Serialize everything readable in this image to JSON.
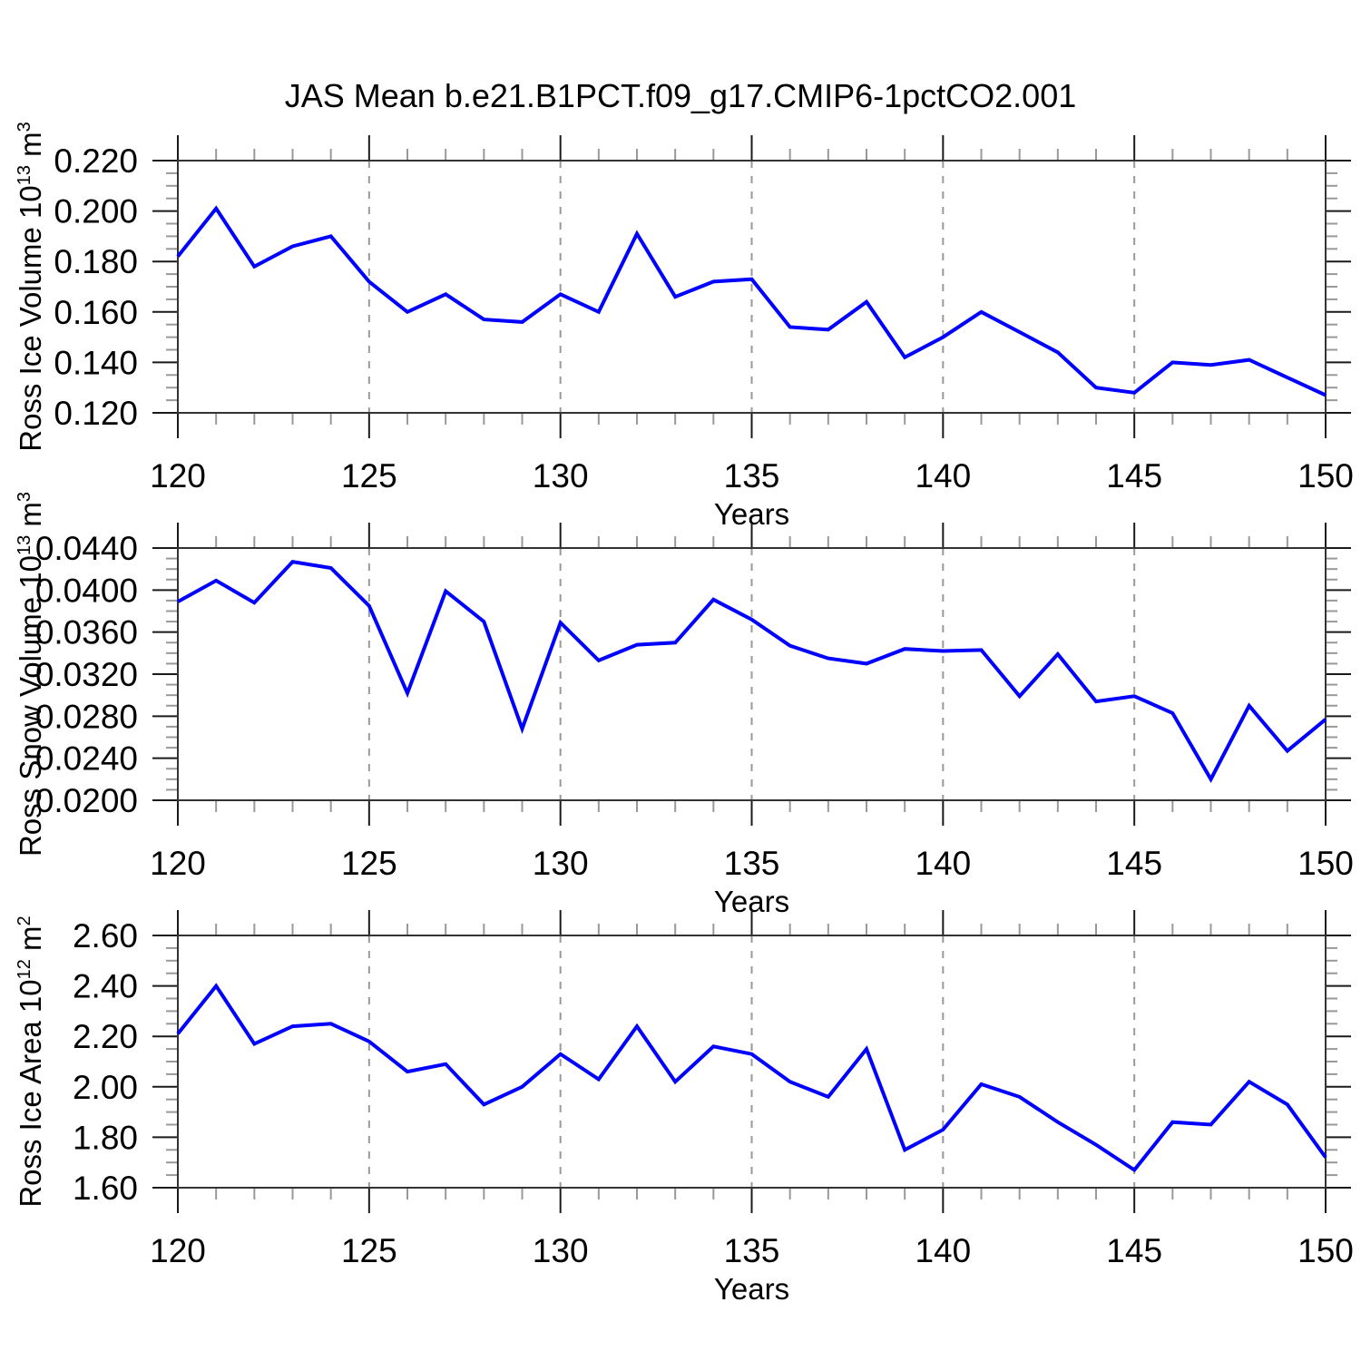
{
  "title": "JAS Mean b.e21.B1PCT.f09_g17.CMIP6-1pctCO2.001",
  "colors": {
    "line": "#0000ff",
    "grid": "#999999",
    "axis": "#333333",
    "tick_major": "#1a1a1a",
    "tick_minor": "#999999",
    "text": "#000000",
    "background": "#ffffff"
  },
  "x_range": [
    120,
    150
  ],
  "years": [
    120,
    121,
    122,
    123,
    124,
    125,
    126,
    127,
    128,
    129,
    130,
    131,
    132,
    133,
    134,
    135,
    136,
    137,
    138,
    139,
    140,
    141,
    142,
    143,
    144,
    145,
    146,
    147,
    148,
    149,
    150
  ],
  "x_major_ticks": [
    120,
    125,
    130,
    135,
    140,
    145,
    150
  ],
  "x_tick_labels": [
    "120",
    "125",
    "130",
    "135",
    "140",
    "145",
    "150"
  ],
  "grid_x": [
    125,
    130,
    135,
    140,
    145
  ],
  "chart_data": [
    {
      "type": "line",
      "id": "ross-ice-volume",
      "ylabel": "Ross Ice Volume 10^13 m^3",
      "xlabel": "Years",
      "ylabel_segments": [
        {
          "text": "Ross Ice Volume 10",
          "sup": false
        },
        {
          "text": "13",
          "sup": true
        },
        {
          "text": " m",
          "sup": false
        },
        {
          "text": "3",
          "sup": true
        }
      ],
      "ylim": [
        0.12,
        0.22
      ],
      "y_minor_step": 0.005,
      "yticks": [
        {
          "value": 0.22,
          "label": "0.220"
        },
        {
          "value": 0.2,
          "label": "0.200"
        },
        {
          "value": 0.18,
          "label": "0.180"
        },
        {
          "value": 0.16,
          "label": "0.160"
        },
        {
          "value": 0.14,
          "label": "0.140"
        },
        {
          "value": 0.12,
          "label": "0.120"
        }
      ],
      "values": [
        0.182,
        0.201,
        0.178,
        0.186,
        0.19,
        0.172,
        0.16,
        0.167,
        0.157,
        0.156,
        0.167,
        0.16,
        0.191,
        0.166,
        0.172,
        0.173,
        0.154,
        0.153,
        0.164,
        0.142,
        0.15,
        0.16,
        0.152,
        0.144,
        0.13,
        0.128,
        0.14,
        0.139,
        0.141,
        0.134,
        0.127
      ]
    },
    {
      "type": "line",
      "id": "ross-snow-volume",
      "ylabel": "Ross Snow Volume 10^13 m^3",
      "xlabel": "Years",
      "ylabel_segments": [
        {
          "text": "Ross Snow Volume 10",
          "sup": false
        },
        {
          "text": "13",
          "sup": true
        },
        {
          "text": " m",
          "sup": false
        },
        {
          "text": "3",
          "sup": true
        }
      ],
      "ylim": [
        0.02,
        0.044
      ],
      "y_minor_step": 0.001,
      "yticks": [
        {
          "value": 0.044,
          "label": "0.0440"
        },
        {
          "value": 0.04,
          "label": "0.0400"
        },
        {
          "value": 0.036,
          "label": "0.0360"
        },
        {
          "value": 0.032,
          "label": "0.0320"
        },
        {
          "value": 0.028,
          "label": "0.0280"
        },
        {
          "value": 0.024,
          "label": "0.0240"
        },
        {
          "value": 0.02,
          "label": "0.0200"
        }
      ],
      "values": [
        0.0389,
        0.0409,
        0.0388,
        0.0427,
        0.0421,
        0.0385,
        0.0302,
        0.0399,
        0.037,
        0.0268,
        0.0369,
        0.0333,
        0.0348,
        0.035,
        0.0391,
        0.0372,
        0.0347,
        0.0335,
        0.033,
        0.0344,
        0.0342,
        0.0343,
        0.0299,
        0.0339,
        0.0294,
        0.0299,
        0.0283,
        0.022,
        0.029,
        0.0247,
        0.0277
      ]
    },
    {
      "type": "line",
      "id": "ross-ice-area",
      "ylabel": "Ross Ice Area 10^12 m^2",
      "xlabel": "Years",
      "ylabel_segments": [
        {
          "text": "Ross Ice Area 10",
          "sup": false
        },
        {
          "text": "12",
          "sup": true
        },
        {
          "text": " m",
          "sup": false
        },
        {
          "text": "2",
          "sup": true
        }
      ],
      "ylim": [
        1.6,
        2.6
      ],
      "y_minor_step": 0.05,
      "yticks": [
        {
          "value": 2.6,
          "label": "2.60"
        },
        {
          "value": 2.4,
          "label": "2.40"
        },
        {
          "value": 2.2,
          "label": "2.20"
        },
        {
          "value": 2.0,
          "label": "2.00"
        },
        {
          "value": 1.8,
          "label": "1.80"
        },
        {
          "value": 1.6,
          "label": "1.60"
        }
      ],
      "values": [
        2.21,
        2.4,
        2.17,
        2.24,
        2.25,
        2.18,
        2.06,
        2.09,
        1.93,
        2.0,
        2.13,
        2.03,
        2.24,
        2.02,
        2.16,
        2.13,
        2.02,
        1.96,
        2.15,
        1.75,
        1.83,
        2.01,
        1.96,
        1.86,
        1.77,
        1.67,
        1.86,
        1.85,
        2.02,
        1.93,
        1.72
      ]
    }
  ]
}
